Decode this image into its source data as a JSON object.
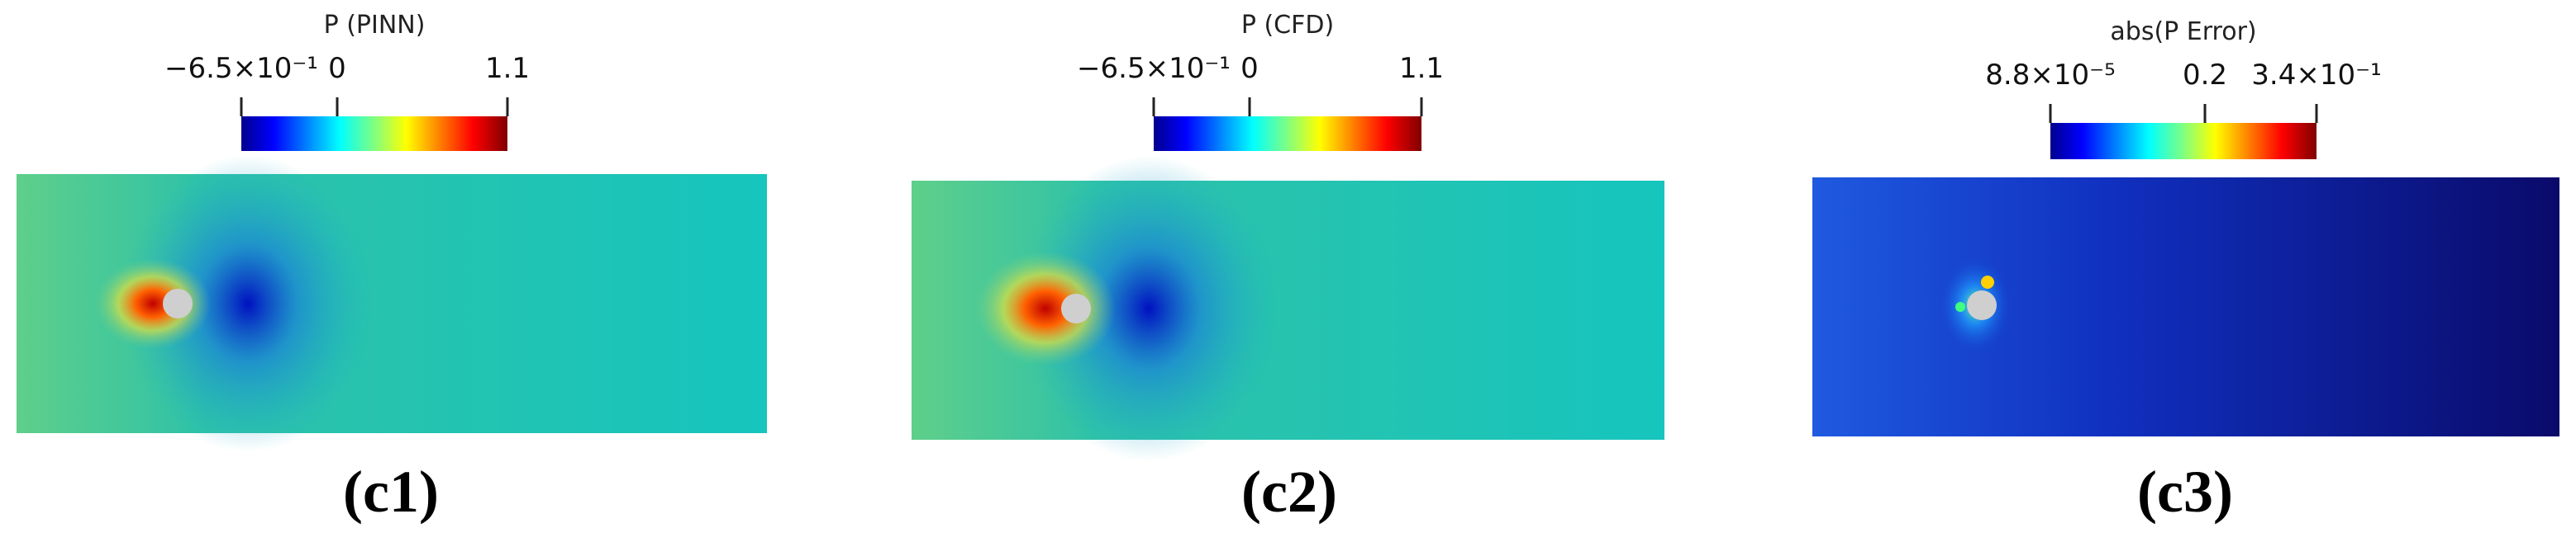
{
  "panels": [
    {
      "title": "P (PINN)",
      "ticks": [
        "−6.5×10⁻¹",
        "0",
        "1.1"
      ],
      "label": "(c1)"
    },
    {
      "title": "P (CFD)",
      "ticks": [
        "−6.5×10⁻¹",
        "0",
        "1.1"
      ],
      "label": "(c2)"
    },
    {
      "title": "abs(P Error)",
      "ticks": [
        "8.8×10⁻⁵",
        "0.2",
        "3.4×10⁻¹"
      ],
      "label": "(c3)"
    }
  ]
}
